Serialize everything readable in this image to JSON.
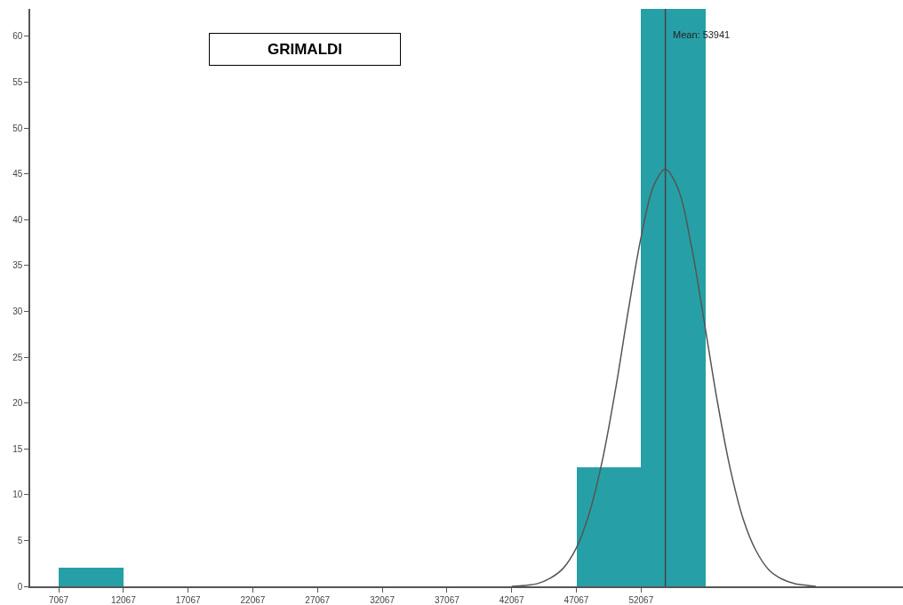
{
  "chart_data": {
    "type": "histogram",
    "title": "GRIMALDI",
    "bins": [
      7067,
      12067,
      17067,
      22067,
      27067,
      32067,
      37067,
      42067,
      47067,
      52067,
      57067
    ],
    "values": [
      2,
      0,
      0,
      0,
      0,
      0,
      0,
      0,
      13,
      63
    ],
    "color": "#26a0a6",
    "series": [
      {
        "type": "line",
        "color": "#555555",
        "x": [
          42067,
          43067,
          44067,
          45067,
          46067,
          47067,
          48067,
          49067,
          50067,
          51067,
          52067,
          53067,
          53941,
          54941,
          55941,
          56941,
          57941,
          58941,
          59941,
          60941,
          61941,
          62941,
          63941,
          64941,
          65567
        ],
        "values": [
          0,
          0.1,
          0.3,
          0.9,
          2,
          4.2,
          8,
          13.7,
          21.3,
          30,
          38.1,
          43.8,
          45.5,
          43.3,
          37.2,
          28.9,
          20.3,
          12.9,
          7.4,
          3.9,
          1.8,
          0.8,
          0.3,
          0.1,
          0
        ]
      }
    ],
    "xlim": [
      4870,
      72300
    ],
    "ylim": [
      0,
      63
    ],
    "xticks": [
      7067,
      12067,
      17067,
      22067,
      27067,
      32067,
      37067,
      42067,
      47067,
      52067
    ],
    "yticks": [
      0,
      5,
      10,
      15,
      20,
      25,
      30,
      35,
      40,
      45,
      50,
      55,
      60
    ],
    "ref_lines": [
      {
        "axis": "x",
        "value": 53941,
        "label": "Mean: 53941",
        "color": "#444444"
      }
    ]
  }
}
